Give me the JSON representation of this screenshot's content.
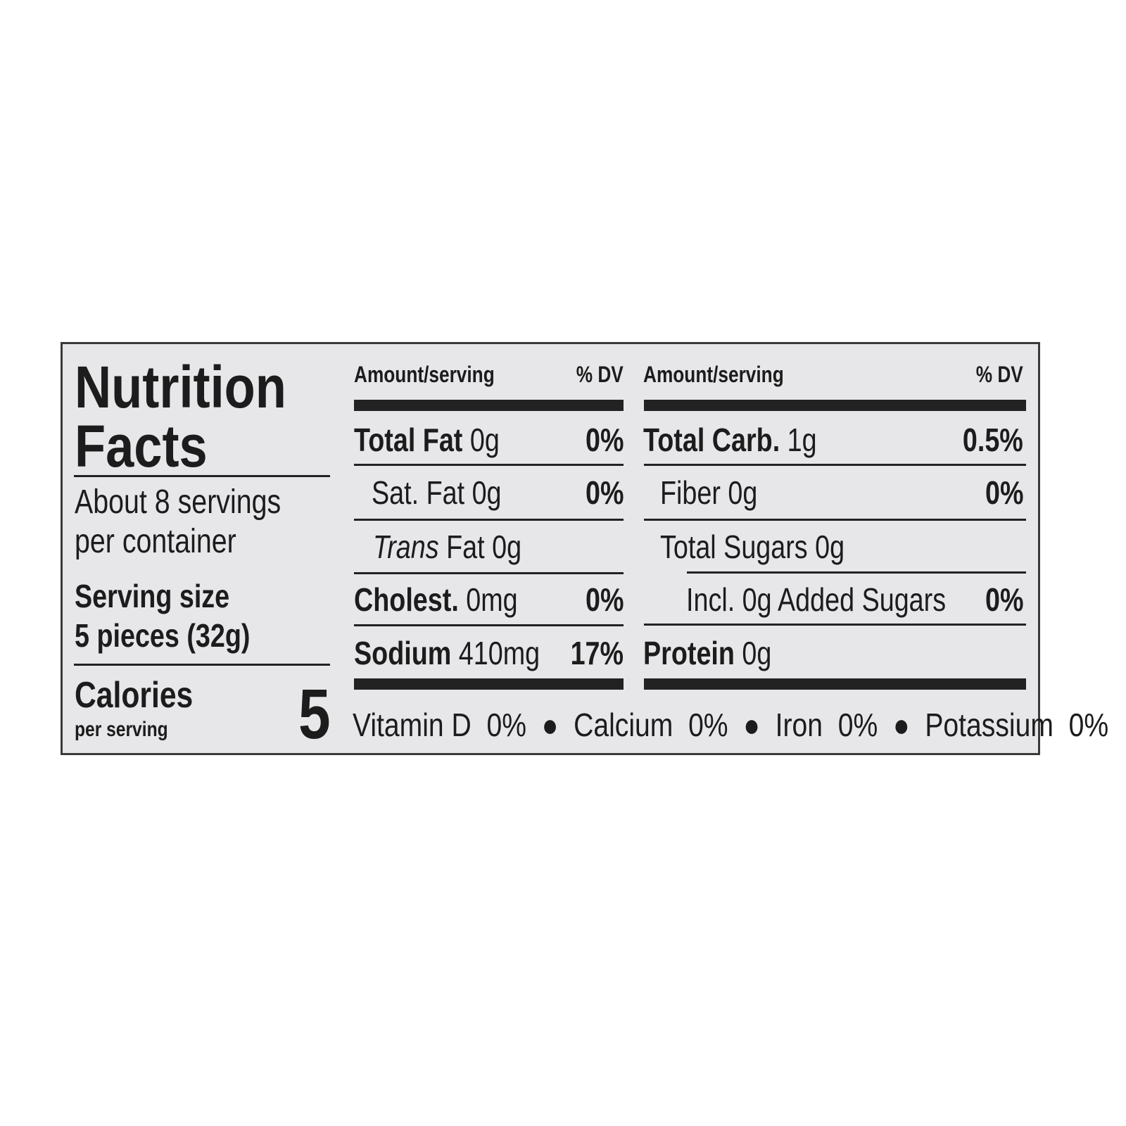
{
  "title_line1": "Nutrition",
  "title_line2": "Facts",
  "servings_line1": "About 8 servings",
  "servings_line2": "per container",
  "serving_size_label": "Serving size",
  "serving_size_value": "5 pieces (32g)",
  "calories_label": "Calories",
  "calories_sub": "per serving",
  "calories_value": "5",
  "left_column": {
    "header_amount": "Amount/serving",
    "header_dv": "% DV",
    "rows": [
      {
        "name": "Total Fat",
        "amount": "0g",
        "dv": "0%"
      },
      {
        "name": "Sat. Fat",
        "amount": "0g",
        "dv": "0%"
      },
      {
        "name_italic": "Trans",
        "name": "Fat",
        "amount": "0g",
        "dv": ""
      },
      {
        "name": "Cholest.",
        "amount": "0mg",
        "dv": "0%"
      },
      {
        "name": "Sodium",
        "amount": "410mg",
        "dv": "17%"
      }
    ]
  },
  "right_column": {
    "header_amount": "Amount/serving",
    "header_dv": "% DV",
    "rows": [
      {
        "name": "Total Carb.",
        "amount": "1g",
        "dv": "0.5%"
      },
      {
        "name": "Fiber",
        "amount": "0g",
        "dv": "0%"
      },
      {
        "name": "Total Sugars",
        "amount": "0g",
        "dv": ""
      },
      {
        "name": "Incl. 0g Added Sugars",
        "amount": "",
        "dv": "0%"
      },
      {
        "name": "Protein",
        "amount": "0g",
        "dv": ""
      }
    ]
  },
  "vitamins": [
    {
      "name": "Vitamin D",
      "dv": "0%"
    },
    {
      "name": "Calcium",
      "dv": "0%"
    },
    {
      "name": "Iron",
      "dv": "0%"
    },
    {
      "name": "Potassium",
      "dv": "0%"
    }
  ],
  "colors": {
    "background": "#e7e6e9",
    "ink": "#1c1c1c"
  }
}
